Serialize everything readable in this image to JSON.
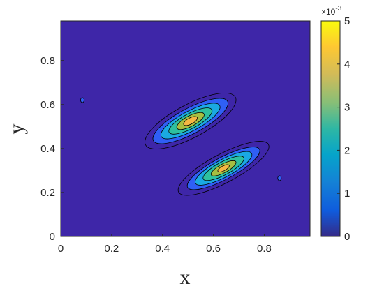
{
  "chart_data": {
    "type": "contourf",
    "xlabel": "x",
    "ylabel": "y",
    "xlim": [
      0,
      0.98
    ],
    "ylim": [
      0,
      0.98
    ],
    "x_ticks": [
      "0",
      "0.2",
      "0.4",
      "0.6",
      "0.8"
    ],
    "x_tick_values": [
      0,
      0.2,
      0.4,
      0.6,
      0.8
    ],
    "y_ticks": [
      "0",
      "0.2",
      "0.4",
      "0.6",
      "0.8"
    ],
    "y_tick_values": [
      0,
      0.2,
      0.4,
      0.6,
      0.8
    ],
    "colorbar": {
      "colormap": "parula",
      "range": [
        0,
        0.005
      ],
      "tick_values": [
        0,
        1,
        2,
        3,
        4,
        5
      ],
      "ticks": [
        "0",
        "1",
        "2",
        "3",
        "4",
        "5"
      ],
      "multiplier": "×10",
      "exponent": "-3"
    },
    "level_colors": [
      "#3e26a8",
      "#2f5ff5",
      "#1aa9e2",
      "#2ec09f",
      "#a6bf41",
      "#f5b743"
    ],
    "blobs": [
      {
        "name": "upper",
        "center": [
          0.51,
          0.525
        ],
        "angle_deg": 28,
        "levels": [
          {
            "rx": 0.2,
            "ry": 0.075
          },
          {
            "rx": 0.165,
            "ry": 0.058
          },
          {
            "rx": 0.13,
            "ry": 0.045
          },
          {
            "rx": 0.095,
            "ry": 0.034
          },
          {
            "rx": 0.06,
            "ry": 0.024
          },
          {
            "rx": 0.03,
            "ry": 0.014
          }
        ]
      },
      {
        "name": "lower",
        "center": [
          0.64,
          0.31
        ],
        "angle_deg": 28,
        "levels": [
          {
            "rx": 0.2,
            "ry": 0.065
          },
          {
            "rx": 0.16,
            "ry": 0.05
          },
          {
            "rx": 0.125,
            "ry": 0.04
          },
          {
            "rx": 0.09,
            "ry": 0.03
          },
          {
            "rx": 0.055,
            "ry": 0.02
          },
          {
            "rx": 0.025,
            "ry": 0.011
          }
        ]
      }
    ],
    "specks": [
      [
        0.085,
        0.62
      ],
      [
        0.86,
        0.265
      ]
    ]
  }
}
